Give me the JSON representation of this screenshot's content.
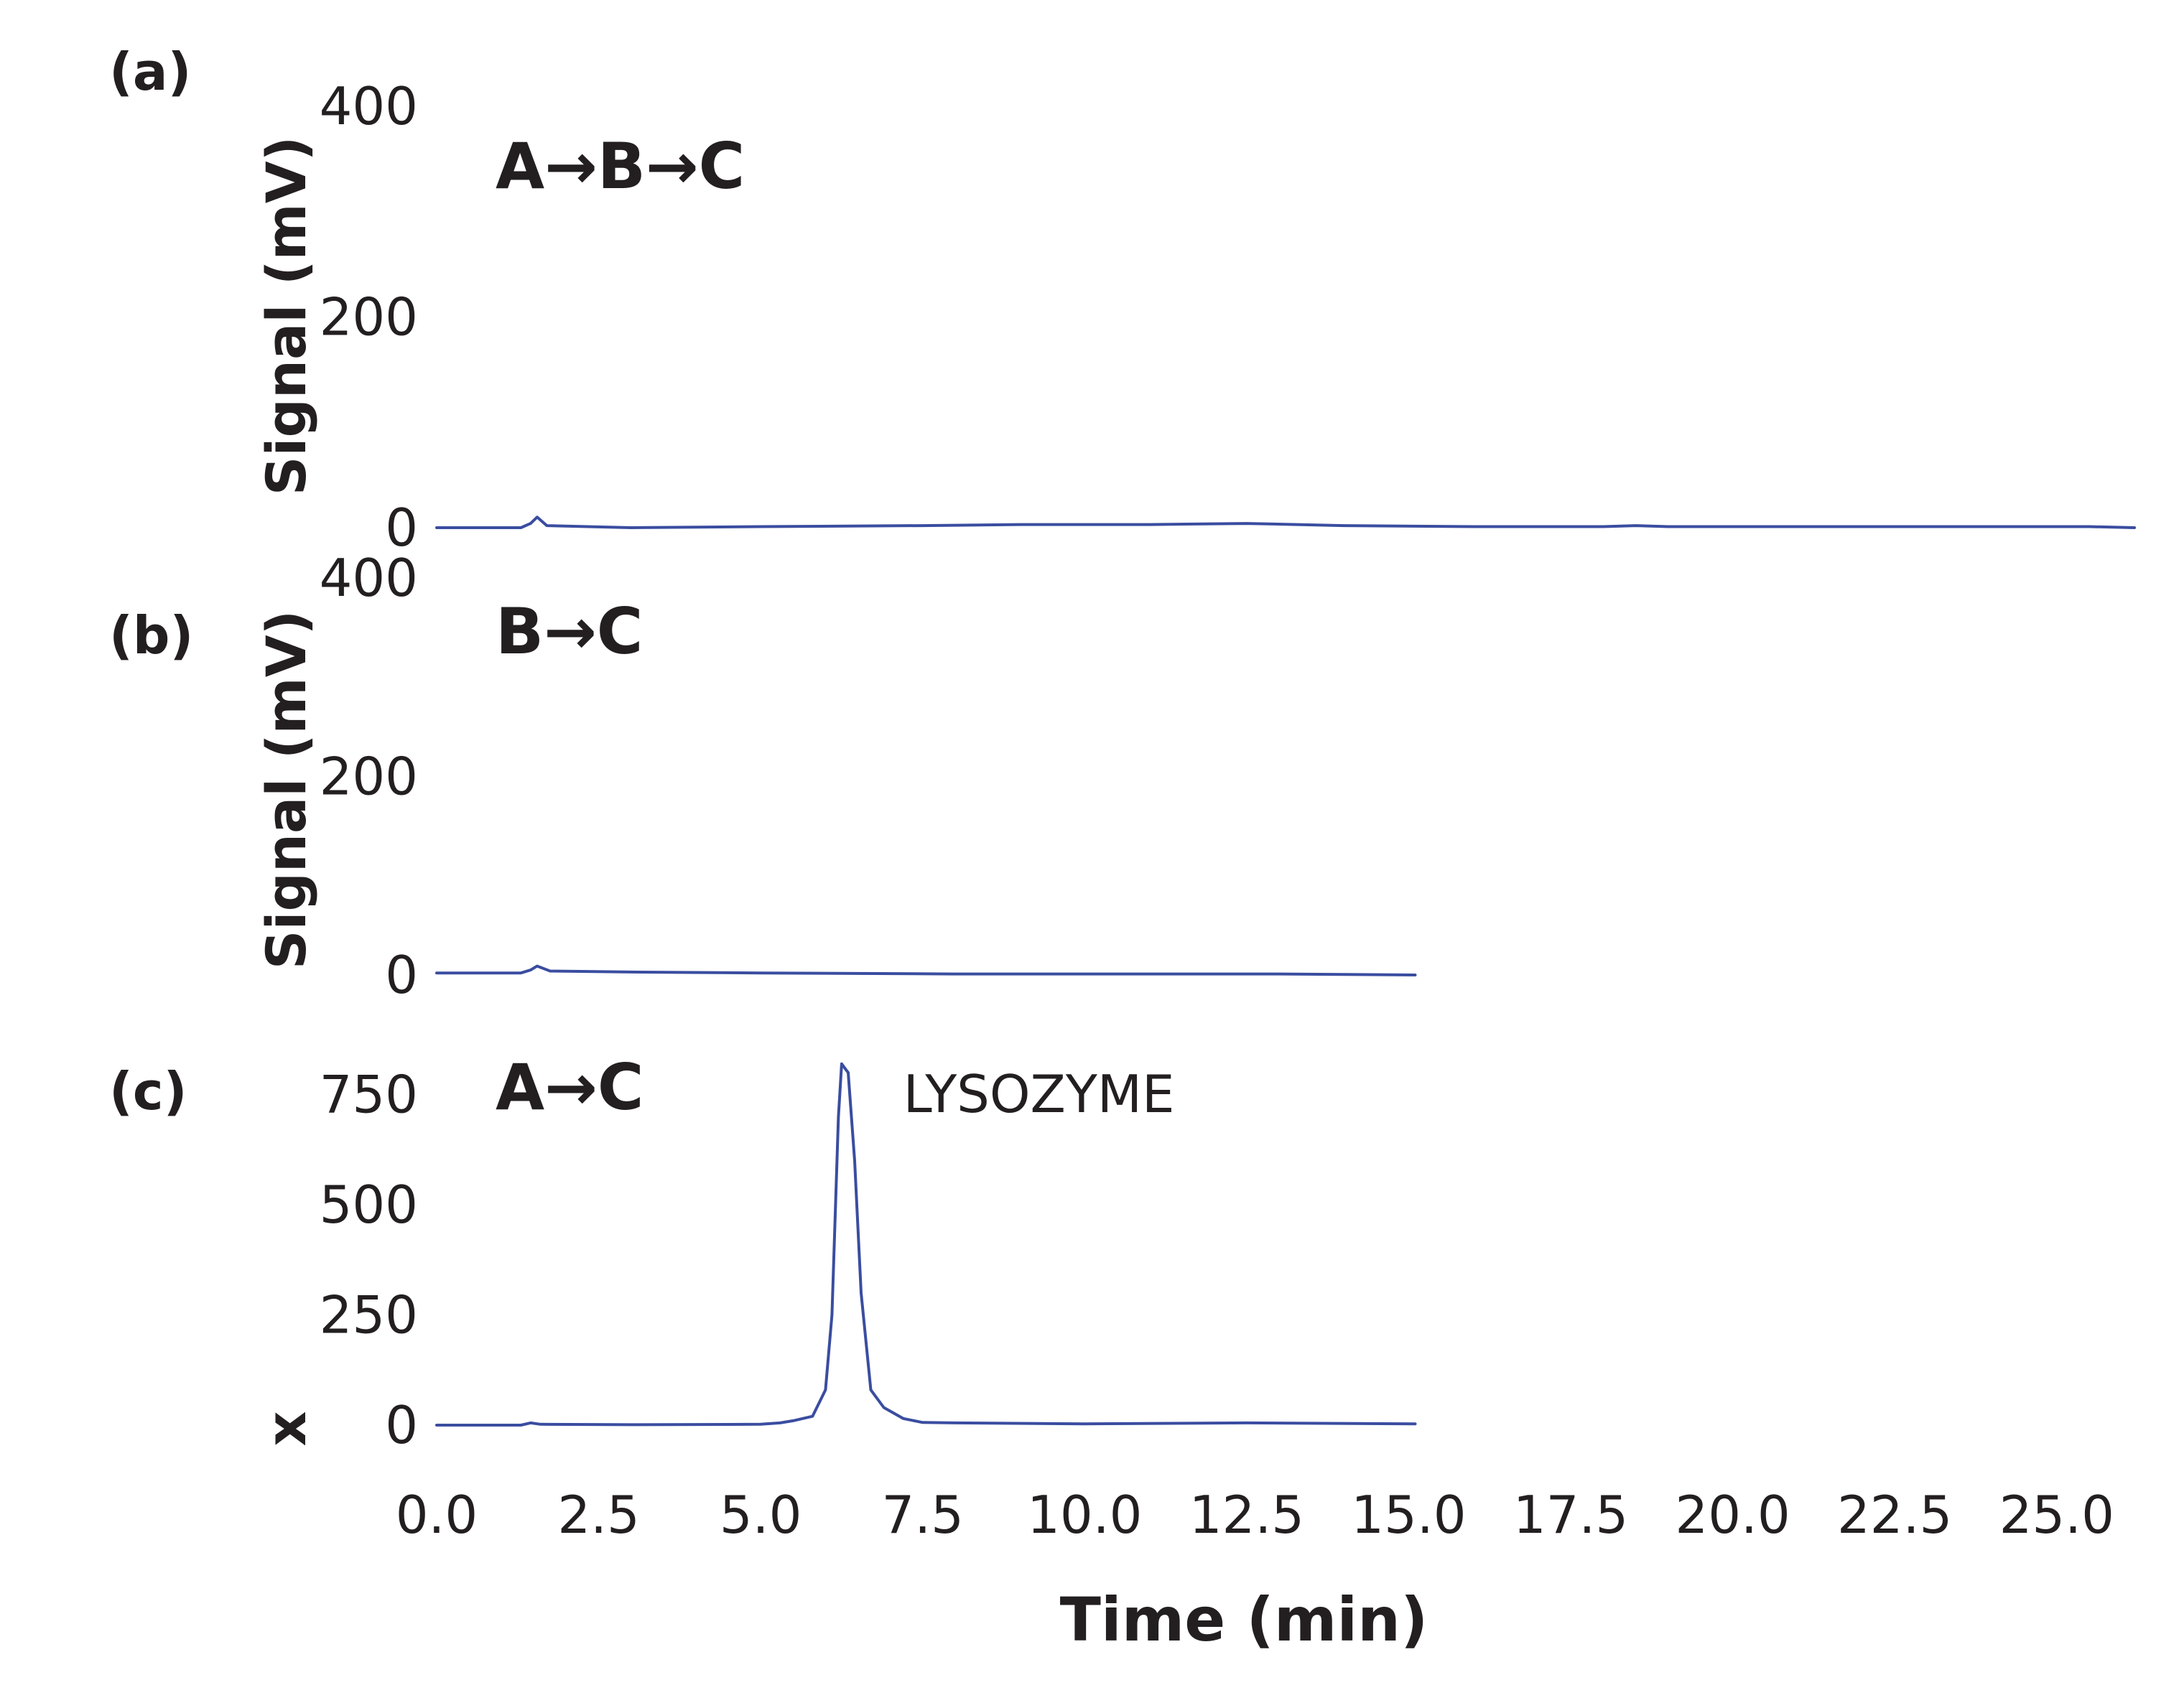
{
  "colors": {
    "trace": "#3a4da0",
    "text": "#231f20"
  },
  "chart_data": [
    {
      "type": "line",
      "panel_label": "(a)",
      "condition": "A→B→C",
      "ylabel": "Signal (mV)",
      "xlim": [
        0,
        26.2
      ],
      "ylim": [
        0,
        400
      ],
      "yticks": [
        0,
        200,
        400
      ],
      "grid": false,
      "series": [
        {
          "x": [
            0,
            1.3,
            1.45,
            1.55,
            1.7,
            3.0,
            5.0,
            7.5,
            9.0,
            11.0,
            12.5,
            14.0,
            16.0,
            18.0,
            18.5,
            19.0,
            22.0,
            25.5,
            26.2
          ],
          "y": [
            0,
            0,
            4,
            10,
            2,
            0,
            1,
            2,
            3,
            3,
            4,
            2,
            1,
            1,
            2,
            1,
            1,
            1,
            0
          ]
        }
      ]
    },
    {
      "type": "line",
      "panel_label": "(b)",
      "condition": "B→C",
      "ylabel": "Signal (mV)",
      "xlim": [
        0,
        26.2
      ],
      "ylim": [
        0,
        400
      ],
      "yticks": [
        0,
        200,
        400
      ],
      "grid": false,
      "series": [
        {
          "x": [
            0,
            1.3,
            1.45,
            1.55,
            1.75,
            3.0,
            5.0,
            8.0,
            10.5,
            13.0,
            15.1
          ],
          "y": [
            2,
            2,
            5,
            9,
            4,
            3,
            2,
            1,
            1,
            1,
            0
          ]
        }
      ]
    },
    {
      "type": "line",
      "panel_label": "(c)",
      "condition": "A→C",
      "ylabel": "x",
      "xlabel": "Time (min)",
      "xlim": [
        0,
        26.2
      ],
      "ylim": [
        0,
        800
      ],
      "yticks": [
        0,
        250,
        500,
        750
      ],
      "xticks": [
        "0.0",
        "2.5",
        "5.0",
        "7.5",
        "10.0",
        "12.5",
        "15.0",
        "17.5",
        "20.0",
        "22.5",
        "25.0"
      ],
      "xtick_values": [
        0,
        2.5,
        5.0,
        7.5,
        10.0,
        12.5,
        15.0,
        17.5,
        20.0,
        22.5,
        25.0
      ],
      "grid": false,
      "annotation": {
        "text": "LYSOZYME",
        "x": 7.2,
        "y": 730
      },
      "series": [
        {
          "x": [
            0,
            1.3,
            1.45,
            1.6,
            3.0,
            5.0,
            5.3,
            5.5,
            5.8,
            5.9,
            6.0,
            6.1,
            6.2,
            6.25,
            6.3,
            6.35,
            6.45,
            6.55,
            6.7,
            6.9,
            7.2,
            7.5,
            8.0,
            10.0,
            12.5,
            15.1
          ],
          "y": [
            0,
            0,
            5,
            2,
            1,
            2,
            5,
            10,
            20,
            50,
            80,
            250,
            700,
            820,
            810,
            800,
            600,
            300,
            80,
            40,
            15,
            6,
            5,
            3,
            5,
            3
          ]
        }
      ]
    }
  ]
}
